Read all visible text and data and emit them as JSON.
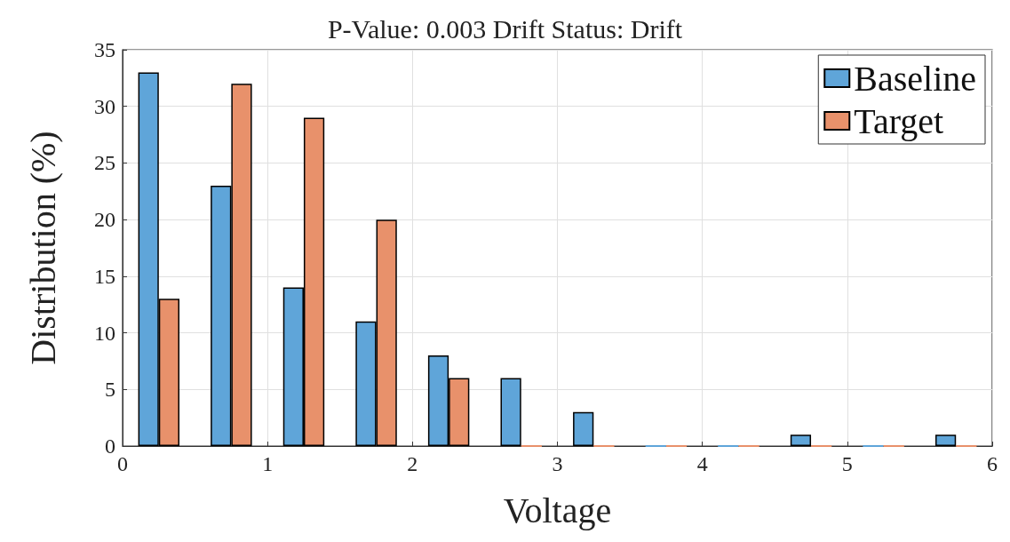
{
  "chart_data": {
    "type": "bar",
    "title": "P-Value: 0.003 Drift Status: Drift",
    "xlabel": "Voltage",
    "ylabel": "Distribution (%)",
    "x": [
      0.25,
      0.75,
      1.25,
      1.75,
      2.25,
      2.75,
      3.25,
      3.75,
      4.25,
      4.75,
      5.25,
      5.75
    ],
    "series": [
      {
        "name": "Baseline",
        "color": "#5fa5d9",
        "values": [
          33,
          23,
          14,
          11,
          8,
          6,
          3,
          0,
          0,
          1,
          0,
          1
        ]
      },
      {
        "name": "Target",
        "color": "#e8916b",
        "values": [
          13,
          32,
          29,
          20,
          6,
          0,
          0,
          0,
          0,
          0,
          0,
          0
        ]
      }
    ],
    "xlim": [
      0,
      6
    ],
    "xticks": [
      0,
      1,
      2,
      3,
      4,
      5,
      6
    ],
    "ylim": [
      0,
      35
    ],
    "yticks": [
      0,
      5,
      10,
      15,
      20,
      25,
      30,
      35
    ],
    "grid": true,
    "legend": "top right"
  }
}
